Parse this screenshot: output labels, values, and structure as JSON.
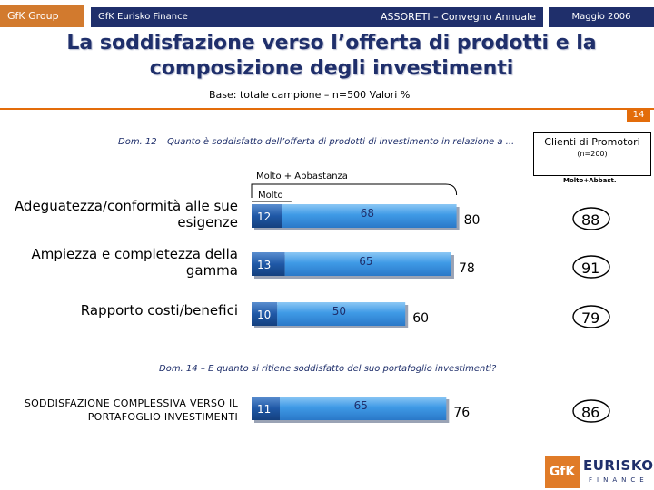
{
  "header": {
    "group": "GfK Group",
    "finance": "GfK Eurisko Finance",
    "event": "ASSORETI – Convegno Annuale",
    "date": "Maggio  2006"
  },
  "title_line1": "La soddisfazione verso l’offerta di prodotti e la",
  "title_line2": "composizione degli investimenti",
  "base": "Base: totale campione – n=500  Valori %",
  "page_number": "14",
  "question1": "Dom. 12 – Quanto è soddisfatto dell’offerta di prodotti di investimento in relazione a ...",
  "question2": "Dom. 14 – E quanto si ritiene soddisfatto del suo portafoglio investimenti?",
  "clients_box": {
    "title": "Clienti di Promotori",
    "n": "(n=200)",
    "subheader": "Molto+Abbast."
  },
  "legend": {
    "molto_abbastanza": "Molto + Abbastanza",
    "molto": "Molto"
  },
  "logo": {
    "gfk": "GfK",
    "eurisko": "EURISKO",
    "finance": "FINANCE"
  },
  "colors": {
    "navy": "#1f2f6b",
    "orange": "#e36c0a",
    "bar_light": "#4aa3e8",
    "bar_dark": "#1d5fa8"
  },
  "chart_data": {
    "type": "bar",
    "orientation": "horizontal",
    "stacked": true,
    "xlim": [
      0,
      100
    ],
    "categories": [
      "Adeguatezza/conformità alle sue esigenze",
      "Ampiezza e completezza della gamma",
      "Rapporto costi/benefici",
      "SODDISFAZIONE COMPLESSIVA VERSO IL PORTAFOGLIO INVESTIMENTI"
    ],
    "series": [
      {
        "name": "Molto",
        "values": [
          12,
          13,
          10,
          11
        ]
      },
      {
        "name": "Abbastanza",
        "values": [
          68,
          65,
          50,
          65
        ]
      }
    ],
    "totals": [
      80,
      78,
      60,
      76
    ],
    "client_promotori": [
      88,
      91,
      79,
      86
    ]
  }
}
